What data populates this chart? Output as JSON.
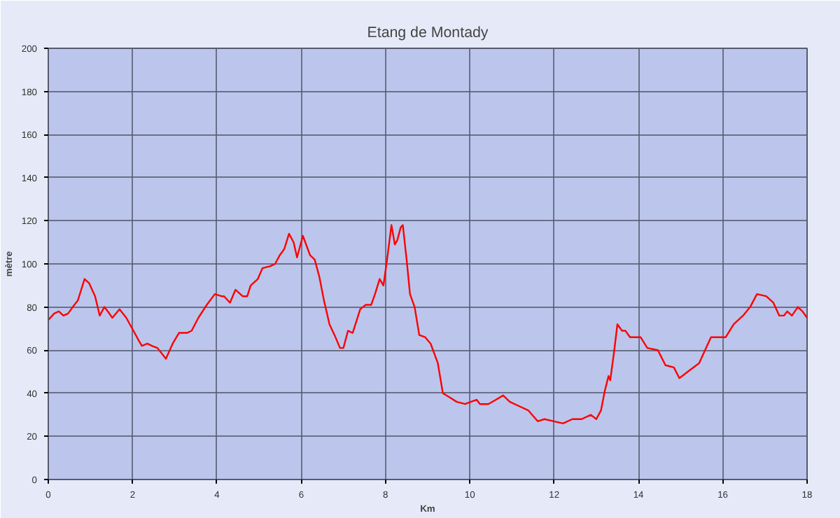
{
  "chart_data": {
    "type": "line",
    "title": "Etang de Montady",
    "xlabel": "Km",
    "ylabel": "mètre",
    "xlim": [
      0,
      18
    ],
    "xticks": [
      0,
      2,
      4,
      6,
      8,
      10,
      12,
      14,
      16,
      18
    ],
    "ylim": [
      0,
      200
    ],
    "yticks": [
      0,
      20,
      40,
      60,
      80,
      100,
      120,
      140,
      160,
      180,
      200
    ],
    "grid": true,
    "marker": "none",
    "line_style": "solid",
    "series": [
      {
        "color": "#ff0000",
        "x": [
          0,
          0.14,
          0.25,
          0.36,
          0.47,
          0.58,
          0.7,
          0.86,
          0.97,
          1.11,
          1.22,
          1.33,
          1.41,
          1.52,
          1.69,
          1.85,
          2.02,
          2.13,
          2.22,
          2.35,
          2.46,
          2.59,
          2.79,
          2.95,
          3.1,
          3.29,
          3.4,
          3.56,
          3.76,
          3.95,
          4.11,
          4.17,
          4.31,
          4.44,
          4.61,
          4.72,
          4.8,
          4.97,
          5.08,
          5.27,
          5.38,
          5.49,
          5.6,
          5.71,
          5.82,
          5.9,
          6.04,
          6.21,
          6.32,
          6.43,
          6.54,
          6.67,
          6.79,
          6.92,
          7.0,
          7.11,
          7.22,
          7.4,
          7.53,
          7.66,
          7.75,
          7.86,
          7.95,
          8.03,
          8.14,
          8.22,
          8.28,
          8.36,
          8.41,
          8.5,
          8.58,
          8.69,
          8.8,
          8.94,
          9.07,
          9.24,
          9.36,
          9.53,
          9.69,
          9.89,
          10.02,
          10.16,
          10.24,
          10.44,
          10.62,
          10.79,
          10.95,
          11.17,
          11.39,
          11.61,
          11.77,
          11.99,
          12.21,
          12.43,
          12.65,
          12.87,
          13.0,
          13.11,
          13.2,
          13.29,
          13.33,
          13.42,
          13.5,
          13.61,
          13.69,
          13.8,
          14.05,
          14.21,
          14.46,
          14.64,
          14.84,
          14.97,
          15.17,
          15.44,
          15.72,
          16.07,
          16.26,
          16.48,
          16.65,
          16.81,
          17.03,
          17.2,
          17.34,
          17.45,
          17.53,
          17.64,
          17.78,
          17.89,
          18.0
        ],
        "values": [
          74,
          77,
          78,
          76,
          77,
          80,
          83,
          93,
          91,
          85,
          76,
          80,
          78,
          75,
          79,
          75,
          69,
          65,
          62,
          63,
          62,
          61,
          56,
          63,
          68,
          68,
          69,
          75,
          81,
          86,
          85,
          85,
          82,
          88,
          85,
          85,
          90,
          93,
          98,
          99,
          100,
          104,
          107,
          114,
          110,
          103,
          113,
          104,
          102,
          94,
          83,
          72,
          67,
          61,
          61,
          69,
          68,
          79,
          81,
          81,
          86,
          93,
          90,
          101,
          118,
          109,
          111,
          117,
          118,
          102,
          86,
          80,
          67,
          66,
          63,
          54,
          40,
          38,
          36,
          35,
          36,
          37,
          35,
          35,
          37,
          39,
          36,
          34,
          32,
          27,
          28,
          27,
          26,
          28,
          28,
          30,
          28,
          32,
          41,
          48,
          46,
          59,
          72,
          69,
          69,
          66,
          66,
          61,
          60,
          53,
          52,
          47,
          50,
          54,
          66,
          66,
          72,
          76,
          80,
          86,
          85,
          82,
          76,
          76,
          78,
          76,
          80,
          78,
          75
        ]
      }
    ]
  }
}
